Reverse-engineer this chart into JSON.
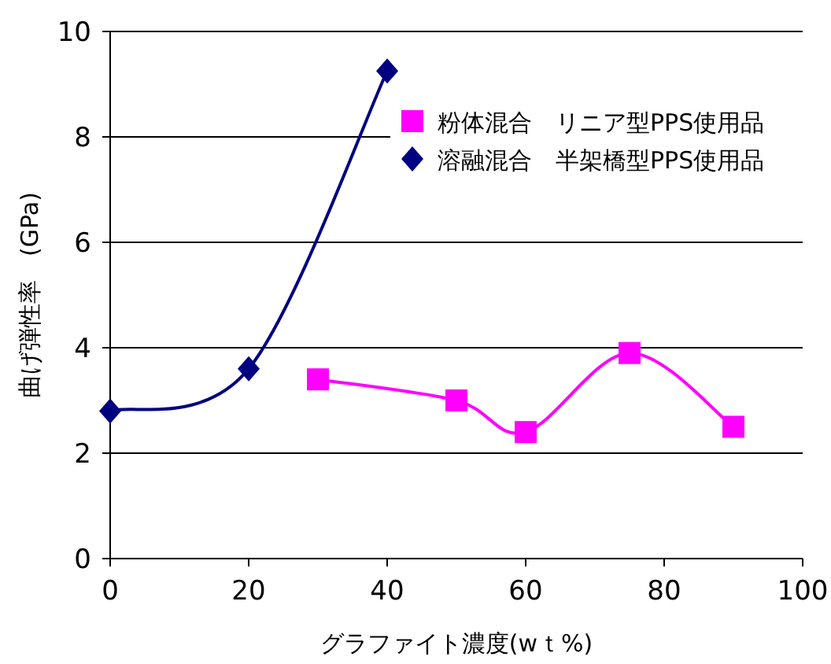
{
  "chart_data": {
    "type": "line",
    "xlabel": "グラファイト濃度(wｔ%)",
    "ylabel": "曲げ弾性率　(GPa)",
    "xlim": [
      0,
      100
    ],
    "xticks": [
      0,
      20,
      40,
      60,
      80,
      100
    ],
    "ylim": [
      0,
      10
    ],
    "yticks": [
      0,
      2,
      4,
      6,
      8,
      10
    ],
    "grid": "y",
    "legend": "top right",
    "series": [
      {
        "name": "粉体混合　リニア型PPS使用品",
        "color": "#ff00ff",
        "marker": "square",
        "x": [
          30,
          50,
          60,
          75,
          90
        ],
        "values": [
          3.4,
          3.0,
          2.4,
          3.9,
          2.5
        ]
      },
      {
        "name": "溶融混合　半架橋型PPS使用品",
        "color": "#000080",
        "marker": "diamond",
        "x": [
          0,
          20,
          40
        ],
        "values": [
          2.8,
          3.6,
          9.25
        ]
      }
    ]
  }
}
